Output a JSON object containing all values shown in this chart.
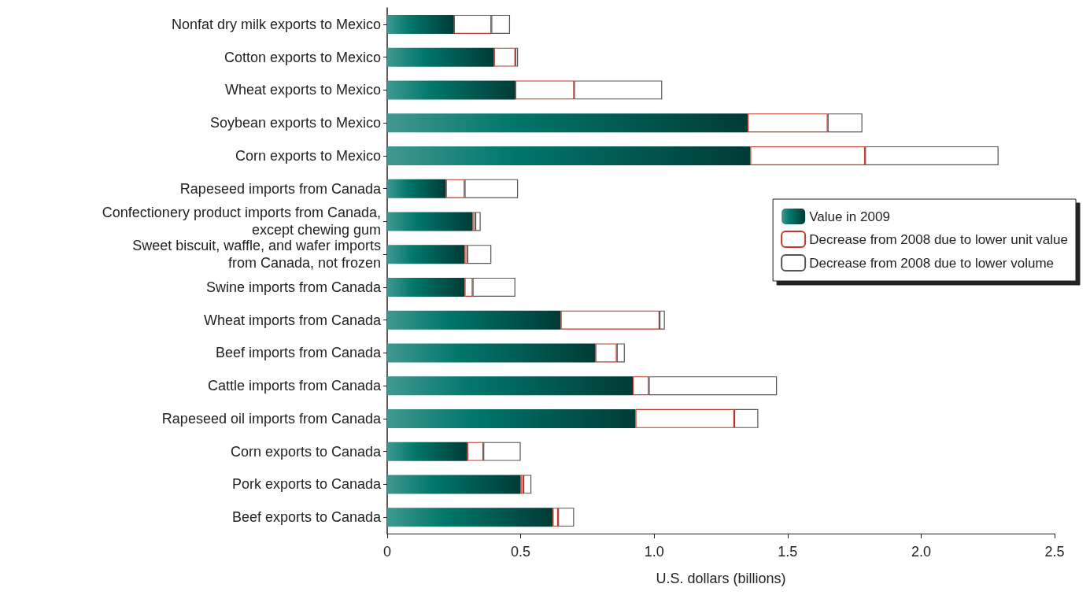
{
  "chart_data": {
    "type": "bar",
    "orientation": "horizontal",
    "stacked": true,
    "categories": [
      "Nonfat dry milk exports to Mexico",
      "Cotton exports to Mexico",
      "Wheat exports to Mexico",
      "Soybean exports to Mexico",
      "Corn exports to Mexico",
      "Rapeseed imports from Canada",
      "Confectionery product imports from Canada,\nexcept chewing gum",
      "Sweet biscuit, waffle, and wafer imports\nfrom Canada, not frozen",
      "Swine imports from Canada",
      "Wheat imports from Canada",
      "Beef imports from Canada",
      "Cattle imports from Canada",
      "Rapeseed oil imports from Canada",
      "Corn exports to Canada",
      "Pork exports to Canada",
      "Beef exports to Canada"
    ],
    "series": [
      {
        "name": "Value in 2009",
        "color": "#00766b",
        "values": [
          0.25,
          0.4,
          0.48,
          1.35,
          1.36,
          0.22,
          0.32,
          0.29,
          0.29,
          0.65,
          0.78,
          0.92,
          0.93,
          0.3,
          0.5,
          0.62
        ]
      },
      {
        "name": "Decrease from 2008 due to lower unit value",
        "color": "#c0392b",
        "values": [
          0.14,
          0.08,
          0.22,
          0.3,
          0.43,
          0.07,
          0.01,
          0.01,
          0.03,
          0.37,
          0.08,
          0.06,
          0.37,
          0.06,
          0.01,
          0.02
        ]
      },
      {
        "name": "Decrease from 2008 due to lower volume",
        "color": "#555555",
        "values": [
          0.07,
          0.01,
          0.33,
          0.13,
          0.5,
          0.2,
          0.02,
          0.09,
          0.16,
          0.02,
          0.03,
          0.48,
          0.09,
          0.14,
          0.03,
          0.06
        ]
      }
    ],
    "xlabel": "U.S. dollars (billions)",
    "xlim": [
      0,
      2.5
    ],
    "xticks": [
      0,
      0.5,
      {
        "value": 1,
        "label": "1.0"
      },
      1.5,
      {
        "value": 2,
        "label": "2.0"
      },
      2.5
    ],
    "grid": false,
    "legend": "right"
  }
}
